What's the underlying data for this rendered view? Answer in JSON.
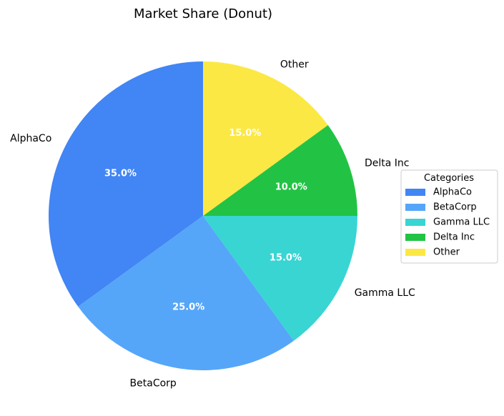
{
  "chart_data": {
    "type": "pie",
    "title": "Market Share (Donut)",
    "categories": [
      "AlphaCo",
      "BetaCorp",
      "Gamma LLC",
      "Delta Inc",
      "Other"
    ],
    "values": [
      35,
      25,
      15,
      10,
      15
    ],
    "percent_labels": [
      "35.0%",
      "25.0%",
      "15.0%",
      "10.0%",
      "15.0%"
    ],
    "colors": [
      "#4285f4",
      "#55a6f8",
      "#38d5d3",
      "#22c345",
      "#fce844"
    ],
    "start_angle_deg": 90,
    "direction": "counterclockwise",
    "legend": {
      "title": "Categories",
      "placement": "right"
    }
  }
}
